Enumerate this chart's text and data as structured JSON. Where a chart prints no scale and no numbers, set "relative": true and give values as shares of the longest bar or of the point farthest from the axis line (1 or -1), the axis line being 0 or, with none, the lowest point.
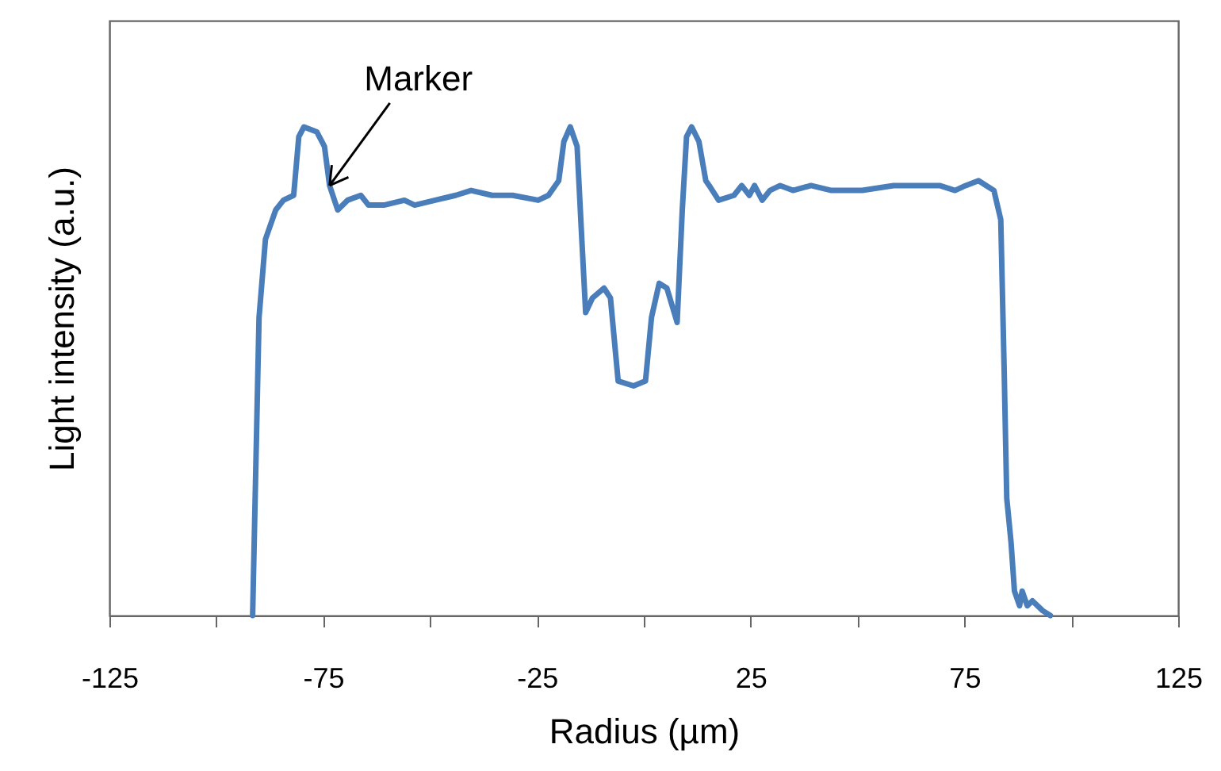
{
  "chart_data": {
    "type": "line",
    "relative": true,
    "xlabel": "Radius (µm)",
    "ylabel": "Light intensity (a.u.)",
    "xlim": [
      -125,
      125
    ],
    "xticks": [
      -125,
      {
        "value": -100,
        "label": null
      },
      -75,
      {
        "value": -50,
        "label": null
      },
      -25,
      {
        "value": 0,
        "label": null
      },
      25,
      {
        "value": 50,
        "label": null
      },
      75,
      {
        "value": 100,
        "label": null
      },
      125
    ],
    "annotations": [
      {
        "text": "Marker",
        "x": -73.5,
        "y": 0.88
      }
    ],
    "grid": false,
    "marker": "none",
    "line_style": "solid",
    "series": [
      {
        "color": "#4a7ebb",
        "x": [
          -91.5,
          -90.0,
          -88.5,
          -86.1,
          -84.3,
          -81.9,
          -80.7,
          -79.5,
          -76.5,
          -74.7,
          -73.5,
          -71.6,
          -69.3,
          -66.2,
          -64.4,
          -60.8,
          -56.0,
          -53.6,
          -48.8,
          -44.0,
          -40.4,
          -35.5,
          -30.7,
          -24.7,
          -22.3,
          -19.9,
          -18.7,
          -17.2,
          -15.6,
          -14.5,
          -13.6,
          -12.0,
          -9.3,
          -7.8,
          -6.0,
          -2.4,
          0.4,
          1.8,
          3.6,
          5.4,
          7.8,
          9.0,
          10.0,
          11.2,
          12.9,
          14.5,
          15.3,
          17.5,
          21.1,
          22.9,
          24.7,
          25.9,
          27.7,
          29.5,
          31.9,
          34.9,
          39.1,
          43.9,
          51.1,
          58.4,
          64.4,
          69.2,
          72.8,
          75.3,
          78.3,
          80.1,
          81.9,
          83.5,
          84.3,
          84.9,
          85.9,
          86.7,
          87.9,
          88.5,
          89.7,
          90.9,
          93.3,
          95.1
        ],
        "values": [
          0,
          0.61,
          0.77,
          0.83,
          0.85,
          0.86,
          0.98,
          1.0,
          0.99,
          0.96,
          0.88,
          0.83,
          0.85,
          0.86,
          0.84,
          0.84,
          0.85,
          0.84,
          0.85,
          0.86,
          0.87,
          0.86,
          0.86,
          0.85,
          0.86,
          0.89,
          0.97,
          1.0,
          0.96,
          0.77,
          0.62,
          0.65,
          0.67,
          0.65,
          0.48,
          0.47,
          0.48,
          0.61,
          0.68,
          0.67,
          0.6,
          0.83,
          0.98,
          1.0,
          0.97,
          0.89,
          0.88,
          0.85,
          0.86,
          0.88,
          0.86,
          0.88,
          0.85,
          0.87,
          0.88,
          0.87,
          0.88,
          0.87,
          0.87,
          0.88,
          0.88,
          0.88,
          0.87,
          0.88,
          0.89,
          0.88,
          0.87,
          0.81,
          0.5,
          0.24,
          0.15,
          0.05,
          0.02,
          0.05,
          0.02,
          0.03,
          0.01,
          0
        ]
      }
    ]
  }
}
